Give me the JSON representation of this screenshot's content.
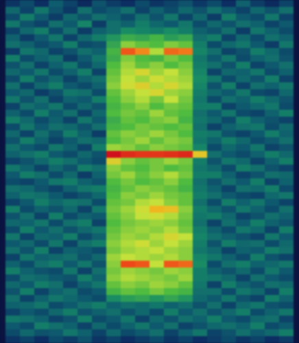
{
  "chart_data": {
    "type": "heatmap",
    "tick_labels": false,
    "zlim": [
      0,
      100
    ],
    "cells": [
      [
        14,
        20,
        12,
        25,
        18,
        10,
        22,
        16,
        12,
        20,
        14,
        18,
        22,
        15,
        20,
        12,
        26,
        16,
        10,
        18
      ],
      [
        28,
        18,
        32,
        22,
        15,
        30,
        20,
        24,
        30,
        18,
        26,
        20,
        28,
        22,
        30,
        24,
        18,
        28,
        22,
        30
      ],
      [
        20,
        34,
        24,
        16,
        28,
        22,
        30,
        26,
        20,
        30,
        22,
        32,
        18,
        28,
        16,
        34,
        24,
        20,
        32,
        18
      ],
      [
        32,
        22,
        18,
        30,
        24,
        36,
        16,
        30,
        26,
        34,
        28,
        24,
        32,
        20,
        28,
        22,
        30,
        26,
        18,
        24
      ],
      [
        18,
        28,
        34,
        20,
        30,
        16,
        26,
        30,
        38,
        36,
        34,
        38,
        34,
        26,
        22,
        30,
        16,
        32,
        26,
        20
      ],
      [
        26,
        16,
        24,
        32,
        18,
        28,
        34,
        40,
        46,
        44,
        48,
        42,
        45,
        30,
        34,
        18,
        28,
        20,
        30,
        26
      ],
      [
        30,
        26,
        20,
        24,
        34,
        20,
        22,
        44,
        56,
        52,
        50,
        55,
        52,
        34,
        20,
        28,
        32,
        24,
        16,
        32
      ],
      [
        16,
        32,
        28,
        18,
        22,
        30,
        26,
        48,
        86,
        80,
        60,
        84,
        82,
        36,
        30,
        18,
        22,
        34,
        28,
        20
      ],
      [
        34,
        20,
        26,
        30,
        16,
        24,
        32,
        46,
        55,
        50,
        48,
        54,
        50,
        32,
        24,
        32,
        20,
        26,
        30,
        22
      ],
      [
        22,
        30,
        18,
        26,
        32,
        20,
        28,
        50,
        58,
        52,
        56,
        50,
        54,
        34,
        30,
        22,
        34,
        18,
        24,
        30
      ],
      [
        28,
        24,
        32,
        20,
        26,
        34,
        18,
        52,
        60,
        66,
        58,
        62,
        56,
        36,
        18,
        28,
        26,
        32,
        20,
        26
      ],
      [
        20,
        34,
        22,
        28,
        18,
        26,
        30,
        54,
        62,
        58,
        64,
        60,
        58,
        38,
        32,
        20,
        28,
        22,
        34,
        18
      ],
      [
        30,
        18,
        28,
        34,
        24,
        20,
        26,
        56,
        64,
        68,
        60,
        66,
        60,
        36,
        22,
        34,
        18,
        30,
        26,
        32
      ],
      [
        24,
        28,
        16,
        22,
        32,
        30,
        20,
        52,
        58,
        62,
        66,
        58,
        56,
        34,
        28,
        24,
        32,
        20,
        18,
        28
      ],
      [
        32,
        22,
        30,
        18,
        26,
        24,
        34,
        50,
        56,
        60,
        54,
        62,
        54,
        32,
        20,
        30,
        26,
        34,
        28,
        22
      ],
      [
        18,
        30,
        26,
        32,
        20,
        28,
        22,
        48,
        52,
        56,
        50,
        54,
        52,
        34,
        34,
        18,
        24,
        28,
        32,
        20
      ],
      [
        26,
        20,
        34,
        24,
        30,
        18,
        28,
        50,
        54,
        52,
        58,
        52,
        50,
        30,
        24,
        32,
        20,
        18,
        26,
        34
      ],
      [
        34,
        28,
        20,
        26,
        18,
        32,
        24,
        46,
        52,
        50,
        54,
        56,
        48,
        32,
        28,
        20,
        34,
        26,
        22,
        18
      ],
      [
        20,
        32,
        24,
        30,
        28,
        22,
        30,
        48,
        50,
        54,
        52,
        50,
        52,
        30,
        18,
        26,
        30,
        32,
        20,
        28
      ],
      [
        28,
        18,
        30,
        22,
        34,
        26,
        16,
        52,
        56,
        54,
        58,
        54,
        50,
        34,
        32,
        22,
        18,
        24,
        34,
        26
      ],
      [
        22,
        34,
        26,
        18,
        24,
        30,
        28,
        50,
        54,
        58,
        52,
        56,
        54,
        32,
        26,
        34,
        28,
        20,
        24,
        30
      ],
      [
        30,
        24,
        20,
        32,
        26,
        18,
        34,
        58,
        56,
        52,
        56,
        54,
        52,
        36,
        20,
        28,
        24,
        32,
        18,
        22
      ],
      [
        26,
        30,
        34,
        24,
        20,
        28,
        22,
        100,
        94,
        92,
        92,
        93,
        95,
        70,
        30,
        24,
        20,
        26,
        34,
        28
      ],
      [
        18,
        22,
        28,
        34,
        30,
        24,
        20,
        68,
        56,
        52,
        54,
        58,
        54,
        34,
        22,
        32,
        28,
        18,
        26,
        34
      ],
      [
        32,
        26,
        18,
        28,
        22,
        34,
        30,
        56,
        52,
        50,
        54,
        50,
        52,
        32,
        28,
        20,
        34,
        30,
        22,
        18
      ],
      [
        24,
        34,
        30,
        20,
        28,
        16,
        26,
        54,
        58,
        52,
        56,
        60,
        54,
        34,
        34,
        26,
        18,
        22,
        30,
        28
      ],
      [
        20,
        18,
        24,
        32,
        34,
        26,
        22,
        50,
        54,
        50,
        52,
        56,
        50,
        30,
        22,
        30,
        24,
        34,
        18,
        26
      ],
      [
        30,
        28,
        22,
        18,
        26,
        32,
        34,
        48,
        52,
        56,
        54,
        52,
        48,
        32,
        26,
        18,
        30,
        28,
        34,
        20
      ],
      [
        26,
        32,
        30,
        24,
        18,
        22,
        28,
        50,
        56,
        54,
        58,
        54,
        52,
        34,
        30,
        24,
        20,
        18,
        28,
        32
      ],
      [
        18,
        24,
        34,
        28,
        32,
        30,
        20,
        52,
        54,
        60,
        62,
        56,
        52,
        30,
        20,
        34,
        26,
        32,
        24,
        18
      ],
      [
        34,
        20,
        26,
        22,
        28,
        18,
        32,
        54,
        58,
        64,
        74,
        72,
        56,
        34,
        28,
        22,
        32,
        26,
        20,
        30
      ],
      [
        22,
        30,
        18,
        34,
        20,
        26,
        24,
        52,
        56,
        62,
        64,
        60,
        54,
        32,
        34,
        28,
        18,
        22,
        30,
        26
      ],
      [
        28,
        26,
        32,
        20,
        30,
        34,
        18,
        50,
        54,
        56,
        58,
        56,
        52,
        30,
        18,
        30,
        24,
        34,
        26,
        22
      ],
      [
        20,
        34,
        24,
        30,
        22,
        28,
        32,
        52,
        56,
        58,
        56,
        60,
        54,
        34,
        26,
        20,
        32,
        28,
        18,
        34
      ],
      [
        32,
        18,
        28,
        26,
        34,
        20,
        26,
        54,
        58,
        56,
        60,
        66,
        62,
        36,
        30,
        26,
        22,
        18,
        32,
        24
      ],
      [
        24,
        28,
        20,
        32,
        18,
        30,
        34,
        56,
        60,
        64,
        58,
        62,
        58,
        34,
        22,
        34,
        28,
        30,
        20,
        28
      ],
      [
        30,
        22,
        34,
        18,
        26,
        24,
        20,
        54,
        58,
        60,
        62,
        58,
        56,
        32,
        28,
        18,
        26,
        24,
        34,
        30
      ],
      [
        18,
        32,
        26,
        28,
        30,
        22,
        28,
        58,
        62,
        60,
        58,
        60,
        56,
        36,
        32,
        26,
        20,
        34,
        22,
        18
      ],
      [
        26,
        20,
        30,
        34,
        24,
        32,
        22,
        56,
        88,
        86,
        62,
        86,
        84,
        38,
        20,
        30,
        34,
        26,
        28,
        32
      ],
      [
        34,
        26,
        22,
        20,
        32,
        18,
        30,
        54,
        58,
        56,
        54,
        58,
        56,
        34,
        26,
        22,
        28,
        20,
        32,
        24
      ],
      [
        20,
        30,
        28,
        24,
        22,
        34,
        26,
        56,
        60,
        58,
        56,
        54,
        58,
        34,
        32,
        28,
        18,
        30,
        24,
        20
      ],
      [
        28,
        24,
        34,
        30,
        18,
        26,
        32,
        52,
        56,
        54,
        58,
        56,
        52,
        32,
        18,
        34,
        26,
        22,
        30,
        28
      ],
      [
        22,
        34,
        18,
        26,
        30,
        20,
        24,
        48,
        52,
        50,
        54,
        50,
        48,
        30,
        30,
        20,
        32,
        28,
        18,
        34
      ],
      [
        30,
        18,
        26,
        32,
        28,
        24,
        20,
        38,
        42,
        44,
        40,
        44,
        40,
        28,
        24,
        32,
        22,
        18,
        34,
        26
      ],
      [
        26,
        28,
        32,
        20,
        24,
        30,
        34,
        26,
        30,
        28,
        32,
        26,
        30,
        22,
        30,
        18,
        28,
        32,
        22,
        20
      ],
      [
        18,
        24,
        20,
        28,
        34,
        22,
        26,
        30,
        22,
        28,
        20,
        34,
        24,
        30,
        22,
        28,
        34,
        20,
        26,
        32
      ],
      [
        32,
        30,
        26,
        18,
        22,
        34,
        20,
        24,
        32,
        18,
        28,
        22,
        30,
        26,
        34,
        24,
        20,
        28,
        30,
        18
      ],
      [
        24,
        20,
        34,
        30,
        26,
        18,
        28,
        20,
        26,
        32,
        24,
        30,
        18,
        22,
        28,
        30,
        26,
        34,
        20,
        24
      ],
      [
        20,
        28,
        22,
        24,
        32,
        26,
        18,
        28,
        20,
        24,
        30,
        18,
        26,
        32,
        18,
        22,
        30,
        24,
        28,
        34
      ],
      [
        14,
        18,
        12,
        20,
        16,
        22,
        14,
        18,
        12,
        16,
        20,
        14,
        18,
        12,
        16,
        20,
        14,
        18,
        12,
        16
      ]
    ]
  }
}
